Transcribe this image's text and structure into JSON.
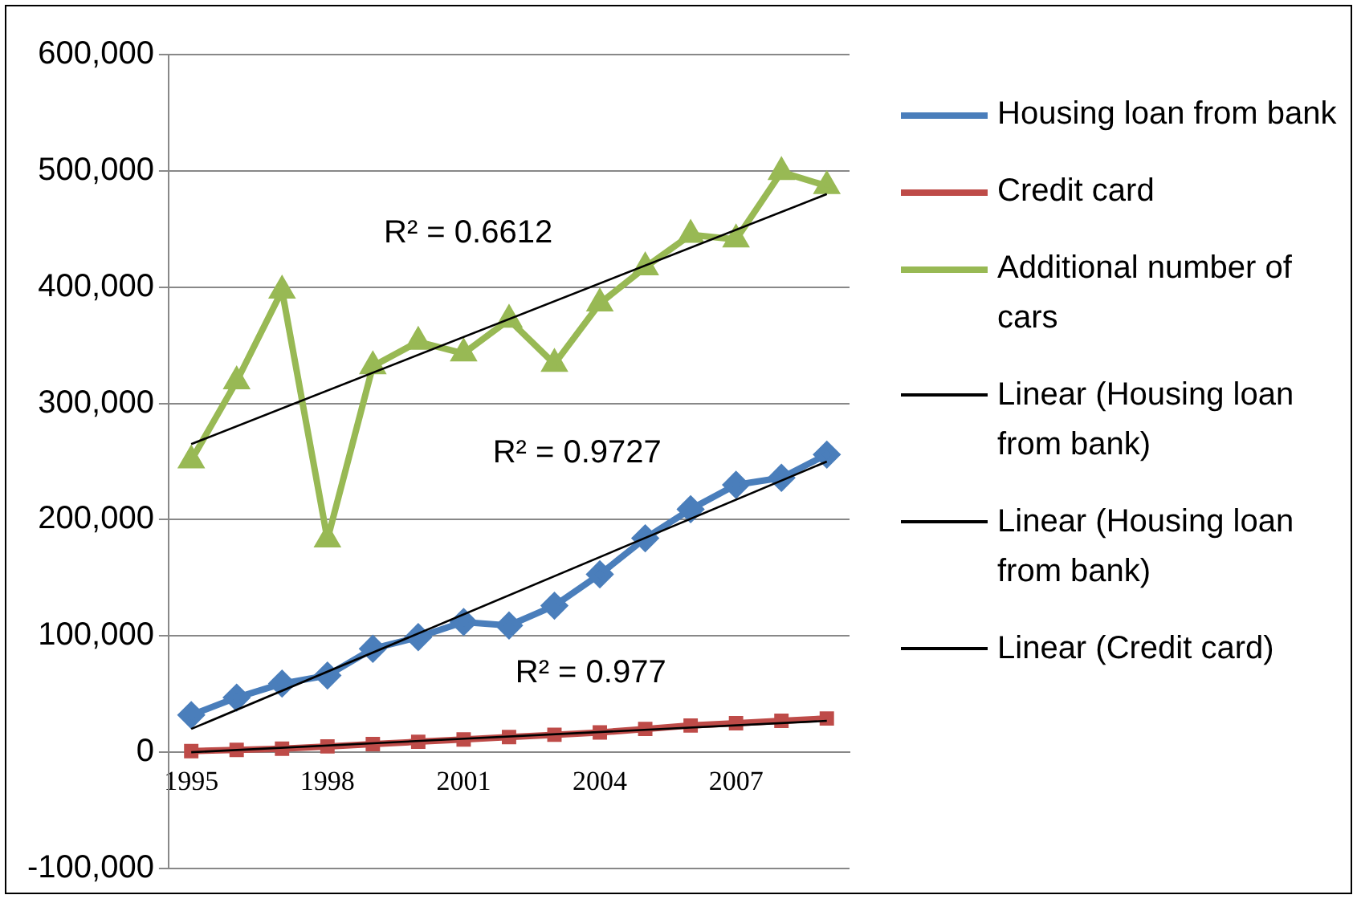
{
  "chart_data": {
    "type": "line",
    "categories": [
      "1995",
      null,
      null,
      "1998",
      null,
      null,
      "2001",
      null,
      null,
      "2004",
      null,
      null,
      "2007",
      null,
      null
    ],
    "series": [
      {
        "name": "Housing loan from bank",
        "color": "#4a7ebb",
        "marker": "diamond",
        "values": [
          32000,
          47000,
          59000,
          66000,
          89000,
          99000,
          112000,
          109000,
          126000,
          153000,
          184000,
          209000,
          230000,
          236000,
          256000
        ]
      },
      {
        "name": "Credit card",
        "color": "#be4b48",
        "marker": "square",
        "values": [
          1000,
          2000,
          3000,
          5000,
          7000,
          9000,
          11000,
          13000,
          15000,
          17000,
          20000,
          23000,
          25000,
          27000,
          29000
        ]
      },
      {
        "name": "Additional number of cars",
        "color": "#98b954",
        "marker": "triangle",
        "values": [
          251000,
          319000,
          397000,
          183000,
          332000,
          353000,
          343000,
          372000,
          334000,
          386000,
          417000,
          445000,
          441000,
          499000,
          487000
        ]
      },
      {
        "name": "Linear (Housing loan from  bank)",
        "color": "#000000",
        "marker": "none",
        "values": [
          20000,
          null,
          null,
          null,
          null,
          null,
          null,
          null,
          null,
          null,
          null,
          null,
          null,
          null,
          250000
        ]
      },
      {
        "name": "Linear (Housing loan from  bank)",
        "color": "#000000",
        "marker": "none",
        "values": [
          265000,
          null,
          null,
          null,
          null,
          null,
          null,
          null,
          null,
          null,
          null,
          null,
          null,
          null,
          480000
        ]
      },
      {
        "name": "Linear (Credit card)",
        "color": "#000000",
        "marker": "none",
        "values": [
          0,
          null,
          null,
          null,
          null,
          null,
          null,
          null,
          null,
          null,
          null,
          null,
          null,
          null,
          27000
        ]
      }
    ],
    "ylim": [
      -100000,
      600000
    ],
    "yticks": [
      {
        "value": -100000,
        "label": "-100,000"
      },
      {
        "value": 0,
        "label": "0"
      },
      {
        "value": 100000,
        "label": "100,000"
      },
      {
        "value": 200000,
        "label": "200,000"
      },
      {
        "value": 300000,
        "label": "300,000"
      },
      {
        "value": 400000,
        "label": "400,000"
      },
      {
        "value": 500000,
        "label": "500,000"
      },
      {
        "value": 600000,
        "label": "600,000"
      }
    ],
    "grid": "y",
    "legend": "right",
    "annotations": [
      "R² = 0.6612",
      "R² = 0.9727",
      "R² = 0.977"
    ]
  }
}
